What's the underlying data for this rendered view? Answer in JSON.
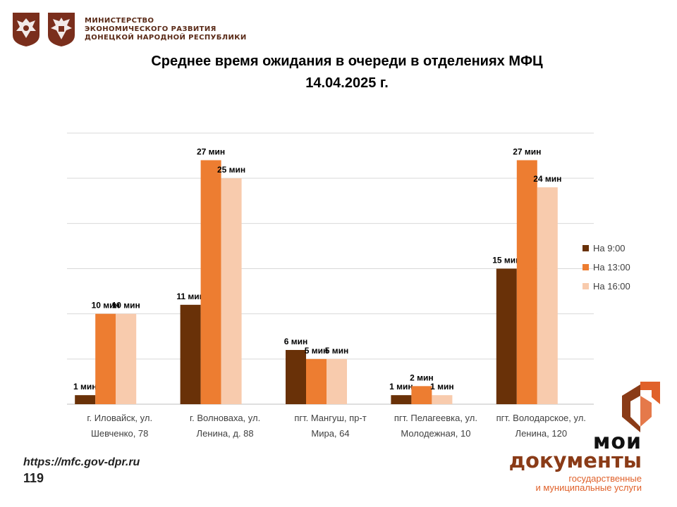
{
  "header": {
    "ministry_lines": [
      "МИНИСТЕРСТВО",
      "ЭКОНОМИЧЕСКОГО РАЗВИТИЯ",
      "ДОНЕЦКОЙ НАРОДНОЙ РЕСПУБЛИКИ"
    ],
    "colors": {
      "emblem_bg": "#7a2e1c",
      "ministry_text": "#5a2a17"
    }
  },
  "footer": {
    "site": "https://mfc.gov-dpr.ru",
    "page_number": "119",
    "brand": {
      "line1": "мои",
      "line2": "документы",
      "line3": "государственные",
      "line4": "и муниципальные услуги",
      "colors": {
        "dark": "#8a3b17",
        "accent": "#e0612a"
      }
    }
  },
  "chart_data": {
    "type": "bar",
    "title": "Среднее время ожидания в очереди в отделениях МФЦ",
    "subtitle": "14.04.2025 г.",
    "categories": [
      [
        "г. Иловайск, ул.",
        "Шевченко, 78"
      ],
      [
        "г. Волноваха, ул.",
        "Ленина, д. 88"
      ],
      [
        "пгт. Мангуш, пр-т",
        "Мира, 64"
      ],
      [
        "пгт. Пелагеевка, ул.",
        "Молодежная, 10"
      ],
      [
        "пгт. Володарское, ул.",
        "Ленина, 120"
      ]
    ],
    "series": [
      {
        "name": "На 9:00",
        "color": "#693108",
        "values": [
          1,
          11,
          6,
          1,
          15
        ],
        "labels": [
          "1 мин",
          "11 мин",
          "6 мин",
          "1 мин",
          "15 мин"
        ]
      },
      {
        "name": "На 13:00",
        "color": "#ed7d31",
        "values": [
          10,
          27,
          5,
          2,
          27
        ],
        "labels": [
          "10  мин",
          "27 мин",
          "5 мин",
          "2 мин",
          "27 мин"
        ]
      },
      {
        "name": "На 16:00",
        "color": "#f8cbad",
        "values": [
          10,
          25,
          5,
          1,
          24
        ],
        "labels": [
          "10 мин",
          "25 мин",
          "5 мин",
          "1 мин",
          "24 мин"
        ]
      }
    ],
    "ylim": [
      0,
      30
    ],
    "grid": true,
    "legend": "right",
    "colors": {
      "grid": "#d9d9d9",
      "axis": "#bfbfbf",
      "label": "#404040"
    }
  }
}
